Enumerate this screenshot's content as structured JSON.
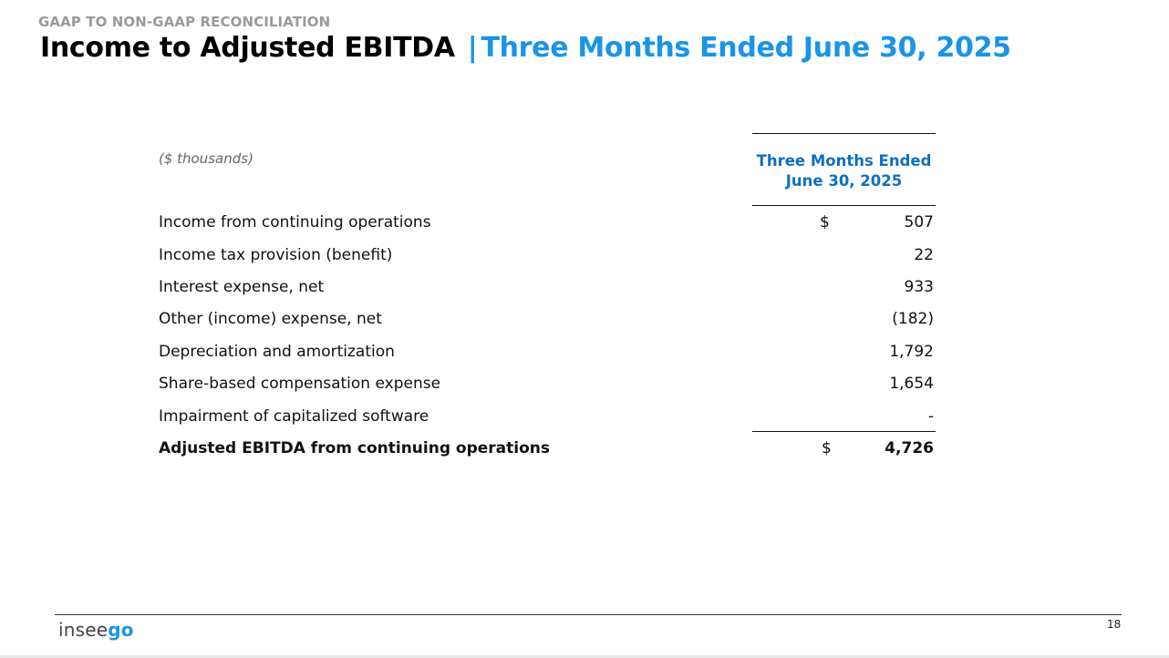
{
  "header": {
    "eyebrow": "GAAP TO NON-GAAP RECONCILIATION",
    "title_main": "Income to Adjusted EBITDA",
    "title_separator": "|",
    "title_sub": "Three Months Ended June 30, 2025"
  },
  "table": {
    "units_label": "($ thousands)",
    "column_header_line1": "Three Months Ended",
    "column_header_line2": "June 30, 2025",
    "rows": [
      {
        "label": "Income from continuing operations",
        "currency": "$",
        "value": "507"
      },
      {
        "label": "Income tax provision (benefit)",
        "currency": "",
        "value": "22"
      },
      {
        "label": "Interest expense, net",
        "currency": "",
        "value": "933"
      },
      {
        "label": "Other (income) expense, net",
        "currency": "",
        "value": "(182)"
      },
      {
        "label": "Depreciation and amortization",
        "currency": "",
        "value": "1,792"
      },
      {
        "label": "Share-based compensation expense",
        "currency": "",
        "value": "1,654"
      },
      {
        "label": "Impairment of capitalized software",
        "currency": "",
        "value": "-"
      }
    ],
    "total": {
      "label": "Adjusted EBITDA from continuing operations",
      "currency": "$",
      "value": "4,726"
    }
  },
  "footer": {
    "logo_part1": "insee",
    "logo_part2": "go",
    "page_number": "18"
  },
  "colors": {
    "accent_blue": "#1a95e6",
    "header_blue": "#0f6fbd",
    "eyebrow_gray": "#9a9a9a"
  }
}
